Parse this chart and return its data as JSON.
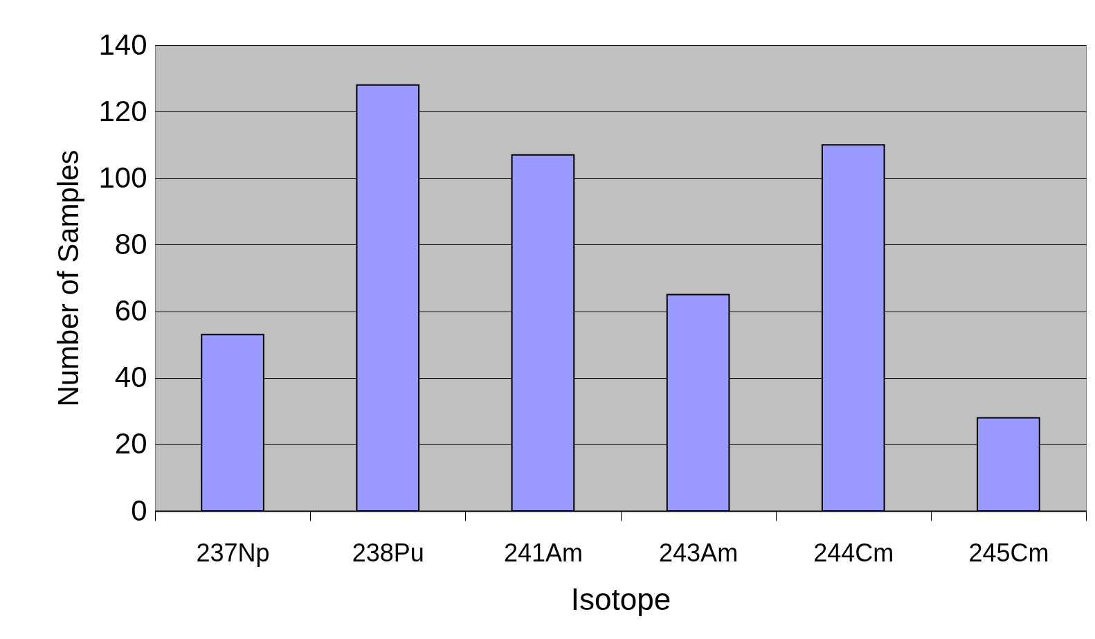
{
  "chart_data": {
    "type": "bar",
    "xlabel": "Isotope",
    "ylabel": "Number of Samples",
    "categories": [
      "237Np",
      "238Pu",
      "241Am",
      "243Am",
      "244Cm",
      "245Cm"
    ],
    "values": [
      53,
      128,
      107,
      65,
      110,
      28
    ],
    "color": "#9999ff",
    "ylim": [
      0,
      140
    ],
    "yticks": [
      0,
      20,
      40,
      60,
      80,
      100,
      120,
      140
    ],
    "grid": "y"
  }
}
